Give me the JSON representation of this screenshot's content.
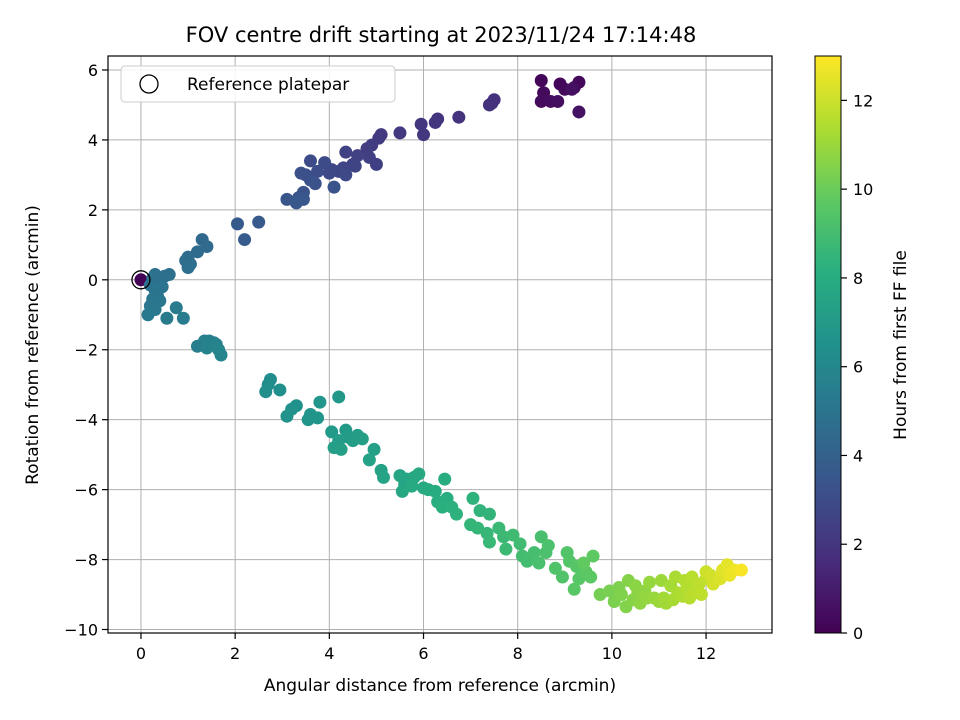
{
  "chart_data": {
    "type": "scatter",
    "title": "FOV centre drift starting at 2023/11/24 17:14:48",
    "xlabel": "Angular distance from reference (arcmin)",
    "ylabel": "Rotation from reference (arcmin)",
    "xlim": [
      -0.7,
      13.4
    ],
    "ylim": [
      -10.1,
      6.4
    ],
    "x_ticks": [
      0,
      2,
      4,
      6,
      8,
      10,
      12
    ],
    "y_ticks": [
      -10,
      -8,
      -6,
      -4,
      -2,
      0,
      2,
      4,
      6
    ],
    "grid": true,
    "legend": {
      "placement": "top-left",
      "entries": [
        "Reference platepar"
      ]
    },
    "reference_point": {
      "x": 0,
      "y": 0
    },
    "colorbar": {
      "label": "Hours from first FF file",
      "colormap": "viridis",
      "range": [
        0,
        13
      ],
      "ticks": [
        0,
        2,
        4,
        6,
        8,
        10,
        12
      ]
    },
    "series": [
      {
        "points": [
          {
            "x": 0.0,
            "y": 0.0,
            "c": 0.1
          },
          {
            "x": 8.5,
            "y": 5.7,
            "c": 0.2
          },
          {
            "x": 8.9,
            "y": 5.6,
            "c": 0.2
          },
          {
            "x": 9.0,
            "y": 5.45,
            "c": 0.25
          },
          {
            "x": 9.3,
            "y": 5.65,
            "c": 0.3
          },
          {
            "x": 8.55,
            "y": 5.35,
            "c": 0.3
          },
          {
            "x": 9.2,
            "y": 5.5,
            "c": 0.35
          },
          {
            "x": 8.5,
            "y": 5.1,
            "c": 0.4
          },
          {
            "x": 8.7,
            "y": 5.1,
            "c": 0.45
          },
          {
            "x": 8.85,
            "y": 5.1,
            "c": 0.5
          },
          {
            "x": 9.15,
            "y": 5.45,
            "c": 0.55
          },
          {
            "x": 9.3,
            "y": 4.8,
            "c": 0.6
          },
          {
            "x": 7.5,
            "y": 5.15,
            "c": 1.8
          },
          {
            "x": 7.45,
            "y": 5.05,
            "c": 1.8
          },
          {
            "x": 7.4,
            "y": 5.0,
            "c": 1.85
          },
          {
            "x": 6.75,
            "y": 4.65,
            "c": 1.9
          },
          {
            "x": 6.3,
            "y": 4.6,
            "c": 1.95
          },
          {
            "x": 6.25,
            "y": 4.5,
            "c": 2.0
          },
          {
            "x": 5.95,
            "y": 4.45,
            "c": 2.05
          },
          {
            "x": 6.0,
            "y": 4.15,
            "c": 2.1
          },
          {
            "x": 5.5,
            "y": 4.2,
            "c": 2.15
          },
          {
            "x": 5.1,
            "y": 4.15,
            "c": 2.2
          },
          {
            "x": 5.05,
            "y": 4.05,
            "c": 2.25
          },
          {
            "x": 4.9,
            "y": 3.85,
            "c": 2.3
          },
          {
            "x": 4.8,
            "y": 3.75,
            "c": 2.35
          },
          {
            "x": 5.0,
            "y": 3.3,
            "c": 2.4
          },
          {
            "x": 4.85,
            "y": 3.5,
            "c": 2.45
          },
          {
            "x": 4.6,
            "y": 3.55,
            "c": 2.5
          },
          {
            "x": 4.35,
            "y": 3.65,
            "c": 2.55
          },
          {
            "x": 4.5,
            "y": 3.3,
            "c": 2.6
          },
          {
            "x": 4.55,
            "y": 3.25,
            "c": 2.65
          },
          {
            "x": 4.3,
            "y": 3.2,
            "c": 2.7
          },
          {
            "x": 4.2,
            "y": 3.1,
            "c": 2.75
          },
          {
            "x": 4.05,
            "y": 3.15,
            "c": 2.8
          },
          {
            "x": 4.0,
            "y": 3.05,
            "c": 2.85
          },
          {
            "x": 4.35,
            "y": 3.0,
            "c": 2.9
          },
          {
            "x": 3.9,
            "y": 3.35,
            "c": 2.95
          },
          {
            "x": 3.6,
            "y": 3.4,
            "c": 3.0
          },
          {
            "x": 3.75,
            "y": 3.1,
            "c": 3.05
          },
          {
            "x": 3.5,
            "y": 3.0,
            "c": 3.1
          },
          {
            "x": 3.4,
            "y": 3.05,
            "c": 3.15
          },
          {
            "x": 3.6,
            "y": 2.85,
            "c": 3.2
          },
          {
            "x": 3.7,
            "y": 2.75,
            "c": 3.25
          },
          {
            "x": 4.1,
            "y": 2.65,
            "c": 3.3
          },
          {
            "x": 3.45,
            "y": 2.5,
            "c": 3.35
          },
          {
            "x": 3.35,
            "y": 2.35,
            "c": 3.4
          },
          {
            "x": 3.1,
            "y": 2.3,
            "c": 3.45
          },
          {
            "x": 3.45,
            "y": 2.3,
            "c": 3.5
          },
          {
            "x": 3.3,
            "y": 2.2,
            "c": 3.55
          },
          {
            "x": 2.5,
            "y": 1.65,
            "c": 3.6
          },
          {
            "x": 2.05,
            "y": 1.6,
            "c": 3.65
          },
          {
            "x": 2.2,
            "y": 1.15,
            "c": 3.7
          },
          {
            "x": 1.3,
            "y": 1.15,
            "c": 4.4
          },
          {
            "x": 1.4,
            "y": 0.95,
            "c": 4.45
          },
          {
            "x": 1.2,
            "y": 0.8,
            "c": 4.5
          },
          {
            "x": 1.0,
            "y": 0.65,
            "c": 4.55
          },
          {
            "x": 1.05,
            "y": 0.45,
            "c": 4.6
          },
          {
            "x": 0.95,
            "y": 0.55,
            "c": 4.6
          },
          {
            "x": 1.0,
            "y": 0.35,
            "c": 4.65
          },
          {
            "x": 0.6,
            "y": 0.15,
            "c": 4.7
          },
          {
            "x": 0.5,
            "y": 0.1,
            "c": 4.75
          },
          {
            "x": 0.3,
            "y": 0.15,
            "c": 4.8
          },
          {
            "x": 0.25,
            "y": 0.05,
            "c": 4.8
          },
          {
            "x": 0.4,
            "y": -0.05,
            "c": 4.85
          },
          {
            "x": 0.2,
            "y": -0.15,
            "c": 4.9
          },
          {
            "x": 0.45,
            "y": -0.2,
            "c": 4.95
          },
          {
            "x": 0.3,
            "y": -0.3,
            "c": 5.0
          },
          {
            "x": 0.35,
            "y": -0.45,
            "c": 5.0
          },
          {
            "x": 0.25,
            "y": -0.55,
            "c": 5.05
          },
          {
            "x": 0.4,
            "y": -0.6,
            "c": 5.1
          },
          {
            "x": 0.2,
            "y": -0.75,
            "c": 5.15
          },
          {
            "x": 0.3,
            "y": -0.85,
            "c": 5.2
          },
          {
            "x": 0.15,
            "y": -1.0,
            "c": 5.25
          },
          {
            "x": 0.55,
            "y": -1.1,
            "c": 5.3
          },
          {
            "x": 0.75,
            "y": -0.8,
            "c": 5.35
          },
          {
            "x": 0.9,
            "y": -1.1,
            "c": 5.4
          },
          {
            "x": 1.2,
            "y": -1.9,
            "c": 5.5
          },
          {
            "x": 1.35,
            "y": -1.75,
            "c": 5.55
          },
          {
            "x": 1.45,
            "y": -1.75,
            "c": 5.6
          },
          {
            "x": 1.55,
            "y": -1.8,
            "c": 5.65
          },
          {
            "x": 1.6,
            "y": -1.85,
            "c": 5.7
          },
          {
            "x": 1.4,
            "y": -1.95,
            "c": 5.75
          },
          {
            "x": 1.65,
            "y": -2.0,
            "c": 5.8
          },
          {
            "x": 1.7,
            "y": -2.15,
            "c": 5.85
          },
          {
            "x": 2.75,
            "y": -2.85,
            "c": 6.3
          },
          {
            "x": 2.7,
            "y": -3.0,
            "c": 6.35
          },
          {
            "x": 2.65,
            "y": -3.2,
            "c": 6.4
          },
          {
            "x": 2.95,
            "y": -3.15,
            "c": 6.45
          },
          {
            "x": 3.3,
            "y": -3.6,
            "c": 6.5
          },
          {
            "x": 3.2,
            "y": -3.7,
            "c": 6.55
          },
          {
            "x": 3.1,
            "y": -3.9,
            "c": 6.6
          },
          {
            "x": 3.6,
            "y": -3.85,
            "c": 6.65
          },
          {
            "x": 3.55,
            "y": -4.0,
            "c": 6.7
          },
          {
            "x": 3.75,
            "y": -3.95,
            "c": 6.75
          },
          {
            "x": 3.8,
            "y": -3.5,
            "c": 6.8
          },
          {
            "x": 4.2,
            "y": -3.35,
            "c": 6.85
          },
          {
            "x": 4.05,
            "y": -4.35,
            "c": 6.95
          },
          {
            "x": 4.35,
            "y": -4.3,
            "c": 7.0
          },
          {
            "x": 4.4,
            "y": -4.5,
            "c": 7.05
          },
          {
            "x": 4.2,
            "y": -4.6,
            "c": 7.1
          },
          {
            "x": 4.6,
            "y": -4.45,
            "c": 7.15
          },
          {
            "x": 4.5,
            "y": -4.6,
            "c": 7.2
          },
          {
            "x": 4.1,
            "y": -4.8,
            "c": 7.25
          },
          {
            "x": 4.25,
            "y": -4.85,
            "c": 7.3
          },
          {
            "x": 4.7,
            "y": -4.55,
            "c": 7.3
          },
          {
            "x": 4.95,
            "y": -4.85,
            "c": 7.35
          },
          {
            "x": 4.85,
            "y": -5.15,
            "c": 7.4
          },
          {
            "x": 5.1,
            "y": -5.45,
            "c": 7.45
          },
          {
            "x": 5.15,
            "y": -5.65,
            "c": 7.5
          },
          {
            "x": 5.5,
            "y": -5.6,
            "c": 7.55
          },
          {
            "x": 5.65,
            "y": -5.7,
            "c": 7.6
          },
          {
            "x": 5.6,
            "y": -5.85,
            "c": 7.65
          },
          {
            "x": 5.55,
            "y": -6.05,
            "c": 7.7
          },
          {
            "x": 5.8,
            "y": -5.65,
            "c": 7.75
          },
          {
            "x": 5.9,
            "y": -5.55,
            "c": 7.8
          },
          {
            "x": 5.75,
            "y": -5.9,
            "c": 7.85
          },
          {
            "x": 6.0,
            "y": -5.95,
            "c": 7.9
          },
          {
            "x": 6.1,
            "y": -6.0,
            "c": 7.95
          },
          {
            "x": 6.25,
            "y": -6.05,
            "c": 8.0
          },
          {
            "x": 6.45,
            "y": -5.7,
            "c": 8.05
          },
          {
            "x": 6.3,
            "y": -6.35,
            "c": 8.1
          },
          {
            "x": 6.5,
            "y": -6.25,
            "c": 8.15
          },
          {
            "x": 6.4,
            "y": -6.5,
            "c": 8.2
          },
          {
            "x": 6.6,
            "y": -6.5,
            "c": 8.25
          },
          {
            "x": 6.7,
            "y": -6.7,
            "c": 8.3
          },
          {
            "x": 7.05,
            "y": -6.25,
            "c": 8.35
          },
          {
            "x": 7.2,
            "y": -6.6,
            "c": 8.4
          },
          {
            "x": 7.4,
            "y": -6.7,
            "c": 8.45
          },
          {
            "x": 7.0,
            "y": -7.0,
            "c": 8.5
          },
          {
            "x": 7.15,
            "y": -7.1,
            "c": 8.55
          },
          {
            "x": 7.35,
            "y": -7.25,
            "c": 8.6
          },
          {
            "x": 7.4,
            "y": -7.5,
            "c": 8.65
          },
          {
            "x": 7.6,
            "y": -7.1,
            "c": 8.7
          },
          {
            "x": 7.7,
            "y": -7.35,
            "c": 8.75
          },
          {
            "x": 7.75,
            "y": -7.7,
            "c": 8.8
          },
          {
            "x": 7.9,
            "y": -7.3,
            "c": 8.85
          },
          {
            "x": 8.05,
            "y": -7.55,
            "c": 8.9
          },
          {
            "x": 8.1,
            "y": -7.9,
            "c": 8.95
          },
          {
            "x": 8.2,
            "y": -8.05,
            "c": 9.0
          },
          {
            "x": 8.35,
            "y": -7.8,
            "c": 9.05
          },
          {
            "x": 8.5,
            "y": -7.35,
            "c": 9.1
          },
          {
            "x": 8.45,
            "y": -8.1,
            "c": 9.15
          },
          {
            "x": 8.6,
            "y": -7.8,
            "c": 9.2
          },
          {
            "x": 8.65,
            "y": -7.6,
            "c": 9.25
          },
          {
            "x": 8.8,
            "y": -8.25,
            "c": 9.3
          },
          {
            "x": 8.95,
            "y": -8.5,
            "c": 9.35
          },
          {
            "x": 9.05,
            "y": -7.8,
            "c": 9.4
          },
          {
            "x": 9.1,
            "y": -8.05,
            "c": 9.45
          },
          {
            "x": 9.25,
            "y": -8.2,
            "c": 9.5
          },
          {
            "x": 9.3,
            "y": -8.55,
            "c": 9.55
          },
          {
            "x": 9.2,
            "y": -8.85,
            "c": 9.6
          },
          {
            "x": 9.45,
            "y": -8.35,
            "c": 9.65
          },
          {
            "x": 9.55,
            "y": -8.5,
            "c": 9.7
          },
          {
            "x": 9.6,
            "y": -7.9,
            "c": 9.75
          },
          {
            "x": 9.4,
            "y": -8.1,
            "c": 9.8
          },
          {
            "x": 9.75,
            "y": -9.0,
            "c": 10.2
          },
          {
            "x": 9.95,
            "y": -8.9,
            "c": 10.3
          },
          {
            "x": 10.05,
            "y": -9.2,
            "c": 10.35
          },
          {
            "x": 10.15,
            "y": -8.8,
            "c": 10.4
          },
          {
            "x": 10.2,
            "y": -9.0,
            "c": 10.45
          },
          {
            "x": 10.3,
            "y": -9.35,
            "c": 10.5
          },
          {
            "x": 10.35,
            "y": -8.6,
            "c": 10.55
          },
          {
            "x": 10.45,
            "y": -9.15,
            "c": 10.6
          },
          {
            "x": 10.5,
            "y": -8.75,
            "c": 10.65
          },
          {
            "x": 10.55,
            "y": -8.95,
            "c": 10.7
          },
          {
            "x": 10.6,
            "y": -9.25,
            "c": 10.75
          },
          {
            "x": 10.7,
            "y": -8.9,
            "c": 10.8
          },
          {
            "x": 10.75,
            "y": -9.1,
            "c": 10.85
          },
          {
            "x": 10.8,
            "y": -8.65,
            "c": 10.9
          },
          {
            "x": 10.9,
            "y": -9.1,
            "c": 10.95
          },
          {
            "x": 11.0,
            "y": -9.2,
            "c": 11.0
          },
          {
            "x": 11.05,
            "y": -8.6,
            "c": 11.05
          },
          {
            "x": 11.1,
            "y": -9.1,
            "c": 11.1
          },
          {
            "x": 11.15,
            "y": -9.25,
            "c": 11.15
          },
          {
            "x": 11.25,
            "y": -8.75,
            "c": 11.2
          },
          {
            "x": 11.3,
            "y": -9.15,
            "c": 11.25
          },
          {
            "x": 11.35,
            "y": -8.5,
            "c": 11.3
          },
          {
            "x": 11.4,
            "y": -8.95,
            "c": 11.35
          },
          {
            "x": 11.5,
            "y": -9.05,
            "c": 11.4
          },
          {
            "x": 11.55,
            "y": -8.6,
            "c": 11.45
          },
          {
            "x": 11.6,
            "y": -8.8,
            "c": 11.5
          },
          {
            "x": 11.65,
            "y": -9.1,
            "c": 11.55
          },
          {
            "x": 11.7,
            "y": -8.5,
            "c": 11.6
          },
          {
            "x": 11.75,
            "y": -8.95,
            "c": 11.65
          },
          {
            "x": 11.85,
            "y": -8.7,
            "c": 11.7
          },
          {
            "x": 11.9,
            "y": -9.0,
            "c": 11.75
          },
          {
            "x": 12.0,
            "y": -8.55,
            "c": 11.8
          },
          {
            "x": 12.0,
            "y": -8.35,
            "c": 12.0
          },
          {
            "x": 12.1,
            "y": -8.45,
            "c": 12.1
          },
          {
            "x": 12.15,
            "y": -8.7,
            "c": 12.15
          },
          {
            "x": 12.3,
            "y": -8.55,
            "c": 12.3
          },
          {
            "x": 12.35,
            "y": -8.3,
            "c": 12.4
          },
          {
            "x": 12.45,
            "y": -8.15,
            "c": 12.5
          },
          {
            "x": 12.5,
            "y": -8.45,
            "c": 12.6
          },
          {
            "x": 12.6,
            "y": -8.3,
            "c": 12.7
          },
          {
            "x": 12.75,
            "y": -8.3,
            "c": 12.9
          }
        ]
      }
    ]
  }
}
